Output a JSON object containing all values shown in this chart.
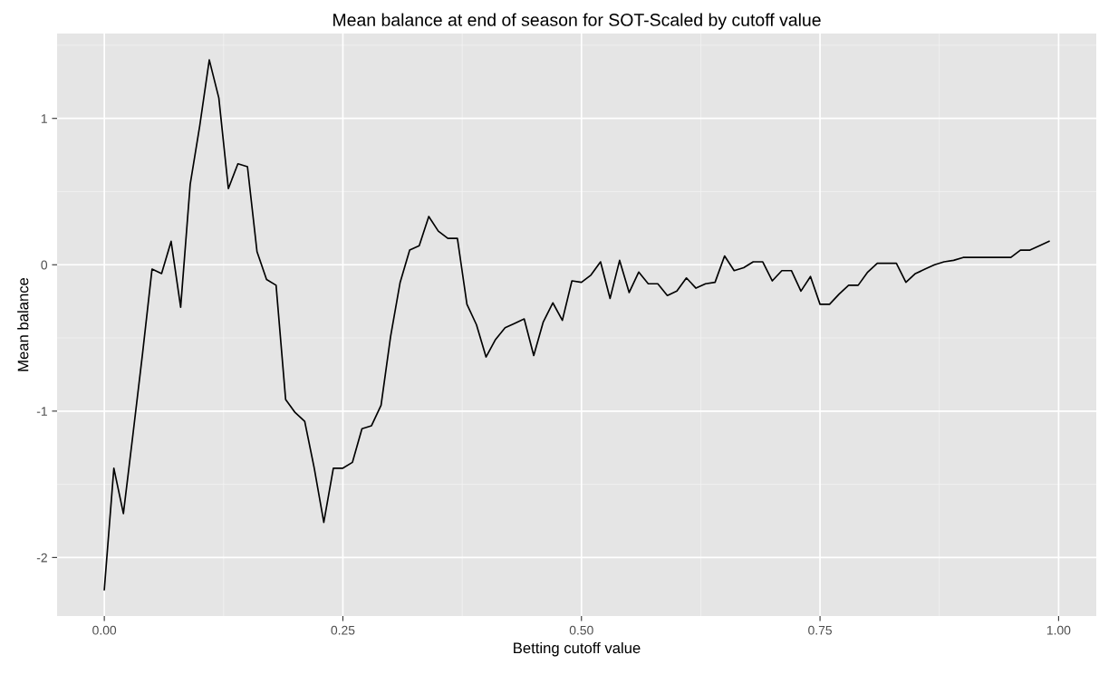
{
  "chart_data": {
    "type": "line",
    "title": "Mean balance at end of season for SOT-Scaled by cutoff value",
    "xlabel": "Betting cutoff value",
    "ylabel": "Mean balance",
    "x": [
      0.0,
      0.01,
      0.02,
      0.03,
      0.04,
      0.05,
      0.06,
      0.07,
      0.08,
      0.09,
      0.1,
      0.11,
      0.12,
      0.13,
      0.14,
      0.15,
      0.16,
      0.17,
      0.18,
      0.19,
      0.2,
      0.21,
      0.22,
      0.23,
      0.24,
      0.25,
      0.26,
      0.27,
      0.28,
      0.29,
      0.3,
      0.31,
      0.32,
      0.33,
      0.34,
      0.35,
      0.36,
      0.37,
      0.38,
      0.39,
      0.4,
      0.41,
      0.42,
      0.43,
      0.44,
      0.45,
      0.46,
      0.47,
      0.48,
      0.49,
      0.5,
      0.51,
      0.52,
      0.53,
      0.54,
      0.55,
      0.56,
      0.57,
      0.58,
      0.59,
      0.6,
      0.61,
      0.62,
      0.63,
      0.64,
      0.65,
      0.66,
      0.67,
      0.68,
      0.69,
      0.7,
      0.71,
      0.72,
      0.73,
      0.74,
      0.75,
      0.76,
      0.77,
      0.78,
      0.79,
      0.8,
      0.81,
      0.82,
      0.83,
      0.84,
      0.85,
      0.86,
      0.87,
      0.88,
      0.89,
      0.9,
      0.91,
      0.92,
      0.93,
      0.94,
      0.95,
      0.96,
      0.97,
      0.98,
      0.99
    ],
    "series": [
      {
        "color": "#000000",
        "values": [
          -2.22,
          -1.39,
          -1.7,
          -1.16,
          -0.61,
          -0.03,
          -0.06,
          0.16,
          -0.29,
          0.55,
          0.95,
          1.4,
          1.14,
          0.52,
          0.69,
          0.67,
          0.09,
          -0.1,
          -0.14,
          -0.92,
          -1.01,
          -1.07,
          -1.39,
          -1.76,
          -1.39,
          -1.39,
          -1.35,
          -1.12,
          -1.1,
          -0.96,
          -0.49,
          -0.12,
          0.1,
          0.13,
          0.33,
          0.23,
          0.18,
          0.18,
          -0.27,
          -0.41,
          -0.63,
          -0.51,
          -0.43,
          -0.4,
          -0.37,
          -0.62,
          -0.39,
          -0.26,
          -0.38,
          -0.11,
          -0.12,
          -0.07,
          0.02,
          -0.23,
          0.03,
          -0.19,
          -0.05,
          -0.13,
          -0.13,
          -0.21,
          -0.18,
          -0.09,
          -0.16,
          -0.13,
          -0.12,
          0.06,
          -0.04,
          -0.02,
          0.02,
          0.02,
          -0.11,
          -0.04,
          -0.04,
          -0.18,
          -0.08,
          -0.27,
          -0.27,
          -0.2,
          -0.14,
          -0.14,
          -0.05,
          0.01,
          0.01,
          0.01,
          -0.12,
          -0.06,
          -0.03,
          0.0,
          0.02,
          0.03,
          0.05,
          0.05,
          0.05,
          0.05,
          0.05,
          0.05,
          0.1,
          0.1,
          0.13,
          0.16
        ]
      }
    ],
    "xlim": [
      -0.0495,
      1.0395
    ],
    "ylim": [
      -2.4,
      1.58
    ],
    "xticks": [
      {
        "value": 0,
        "label": "0.00"
      },
      {
        "value": 0.25,
        "label": "0.25"
      },
      {
        "value": 0.5,
        "label": "0.50"
      },
      {
        "value": 0.75,
        "label": "0.75"
      },
      {
        "value": 1,
        "label": "1.00"
      }
    ],
    "yticks": [
      -2,
      -1,
      0,
      1
    ],
    "grid": true,
    "line_style": "solid"
  }
}
